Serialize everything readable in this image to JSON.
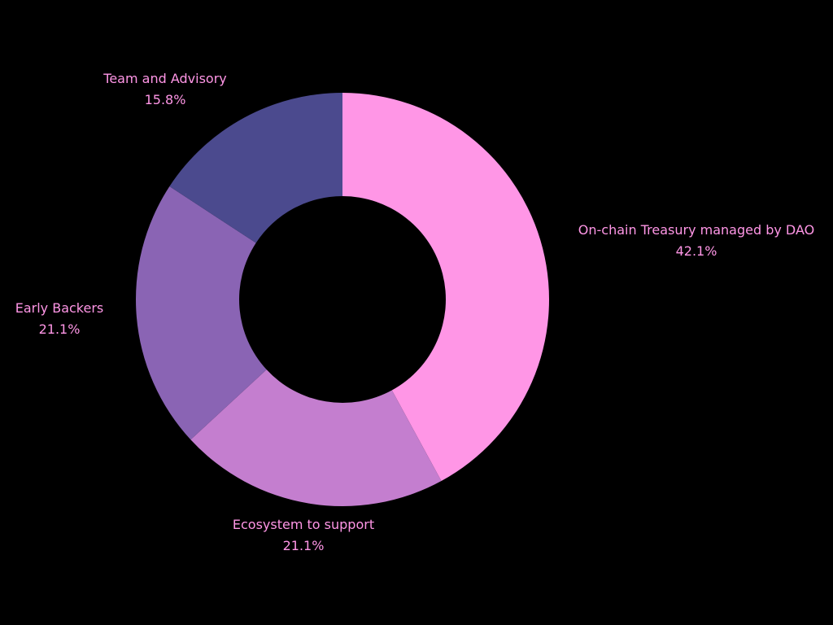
{
  "chart_data": {
    "type": "pie",
    "variant": "donut",
    "title": "",
    "categories": [
      "On-chain Treasury managed by DAO",
      "Ecosystem to support",
      "Early Backers",
      "Team and Advisory"
    ],
    "values": [
      42.1,
      21.1,
      21.1,
      15.8
    ],
    "value_labels": [
      "42.1%",
      "21.1%",
      "21.1%",
      "15.8%"
    ],
    "colors": [
      "#ff96e6",
      "#c47ecf",
      "#8a64b4",
      "#4b4a8e"
    ],
    "start": "top",
    "direction": "clockwise",
    "legend": "none"
  }
}
